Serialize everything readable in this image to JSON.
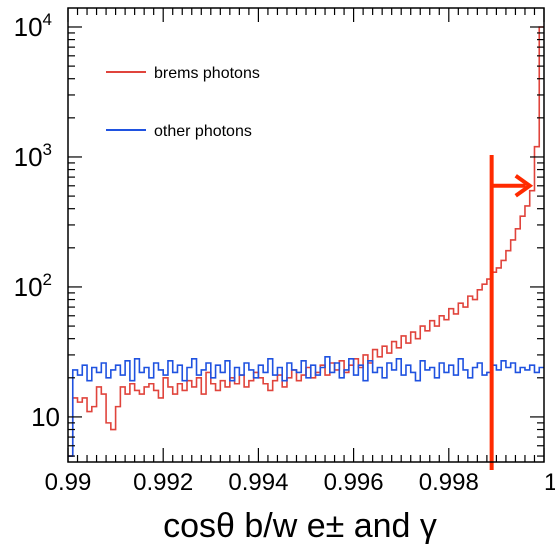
{
  "chart_data": {
    "type": "line",
    "drawstyle": "steps",
    "title": "",
    "xlabel": "cosθ b/w e± and γ",
    "ylabel": "",
    "xlim": [
      0.99,
      1.0
    ],
    "ylim": [
      4.5,
      14000
    ],
    "yscale": "log",
    "x_ticks": [
      0.99,
      0.992,
      0.994,
      0.996,
      0.998,
      1.0
    ],
    "x_tick_labels": [
      "0.99",
      "0.992",
      "0.994",
      "0.996",
      "0.998",
      "1"
    ],
    "y_ticks": [
      10,
      100,
      1000,
      10000
    ],
    "y_tick_labels": [
      {
        "base": "10",
        "exp": ""
      },
      {
        "base": "10",
        "exp": "2"
      },
      {
        "base": "10",
        "exp": "3"
      },
      {
        "base": "10",
        "exp": "4"
      }
    ],
    "grid": false,
    "legend_position": "top-left",
    "x": [
      0.99,
      0.9901,
      0.9902,
      0.9903,
      0.9904,
      0.9905,
      0.9906,
      0.9907,
      0.9908,
      0.9909,
      0.991,
      0.9911,
      0.9912,
      0.9913,
      0.9914,
      0.9915,
      0.9916,
      0.9917,
      0.9918,
      0.9919,
      0.992,
      0.9921,
      0.9922,
      0.9923,
      0.9924,
      0.9925,
      0.9926,
      0.9927,
      0.9928,
      0.9929,
      0.993,
      0.9931,
      0.9932,
      0.9933,
      0.9934,
      0.9935,
      0.9936,
      0.9937,
      0.9938,
      0.9939,
      0.994,
      0.9941,
      0.9942,
      0.9943,
      0.9944,
      0.9945,
      0.9946,
      0.9947,
      0.9948,
      0.9949,
      0.995,
      0.9951,
      0.9952,
      0.9953,
      0.9954,
      0.9955,
      0.9956,
      0.9957,
      0.9958,
      0.9959,
      0.996,
      0.9961,
      0.9962,
      0.9963,
      0.9964,
      0.9965,
      0.9966,
      0.9967,
      0.9968,
      0.9969,
      0.997,
      0.9971,
      0.9972,
      0.9973,
      0.9974,
      0.9975,
      0.9976,
      0.9977,
      0.9978,
      0.9979,
      0.998,
      0.9981,
      0.9982,
      0.9983,
      0.9984,
      0.9985,
      0.9986,
      0.9987,
      0.9988,
      0.9989,
      0.999,
      0.9991,
      0.9992,
      0.9993,
      0.9994,
      0.9995,
      0.9996,
      0.9997,
      0.9998,
      0.9999
    ],
    "series": [
      {
        "name": "brems photons",
        "color": "#e0443c",
        "values": [
          5,
          14,
          13,
          14,
          11,
          12,
          17,
          15,
          9,
          8,
          12,
          17,
          15,
          18,
          16,
          15,
          17,
          18,
          16,
          14,
          20,
          17,
          15,
          18,
          16,
          19,
          17,
          20,
          15,
          22,
          18,
          16,
          19,
          17,
          20,
          18,
          21,
          17,
          19,
          22,
          20,
          18,
          16,
          19,
          21,
          17,
          20,
          23,
          19,
          21,
          24,
          20,
          22,
          25,
          21,
          26,
          23,
          27,
          22,
          25,
          28,
          24,
          30,
          26,
          33,
          29,
          35,
          31,
          38,
          34,
          42,
          37,
          45,
          40,
          50,
          46,
          55,
          50,
          60,
          56,
          68,
          62,
          75,
          70,
          85,
          80,
          95,
          105,
          115,
          130,
          140,
          160,
          190,
          230,
          280,
          350,
          420,
          550,
          1200,
          10000
        ]
      },
      {
        "name": "other photons",
        "color": "#1f52e0",
        "values": [
          5,
          23,
          21,
          25,
          19,
          24,
          22,
          26,
          20,
          23,
          25,
          21,
          27,
          19,
          28,
          22,
          24,
          20,
          26,
          23,
          21,
          27,
          22,
          25,
          19,
          24,
          28,
          21,
          23,
          26,
          20,
          25,
          22,
          27,
          19,
          24,
          21,
          26,
          23,
          20,
          25,
          22,
          28,
          21,
          24,
          19,
          26,
          23,
          22,
          27,
          20,
          25,
          21,
          24,
          29,
          22,
          26,
          20,
          23,
          28,
          21,
          25,
          19,
          27,
          22,
          24,
          20,
          26,
          23,
          28,
          21,
          25,
          22,
          19,
          27,
          23,
          24,
          20,
          26,
          22,
          25,
          21,
          28,
          23,
          20,
          24,
          26,
          21,
          22,
          25,
          23,
          27,
          24,
          26,
          22,
          24,
          23,
          25,
          22,
          24
        ]
      }
    ],
    "annotations": [
      {
        "type": "vertical-line",
        "x": 0.9989,
        "color": "#ff2a00"
      },
      {
        "type": "arrow",
        "from_x": 0.9989,
        "to_x": 0.9997,
        "y": 600,
        "color": "#ff2a00"
      }
    ]
  }
}
